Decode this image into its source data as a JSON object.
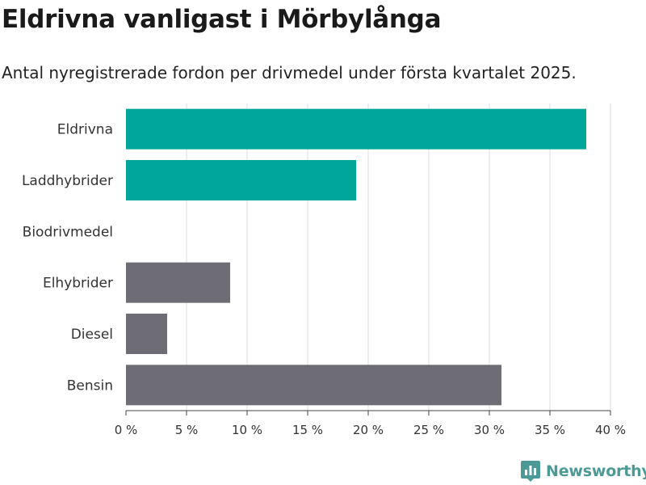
{
  "title": "Eldrivna vanligast i Mörbylånga",
  "subtitle": "Antal nyregistrerade fordon per drivmedel under första kvartalet 2025.",
  "brand": {
    "name": "Newsworthy",
    "logo_icon": "bar-chart-icon",
    "color": "#4c9a97"
  },
  "colors": {
    "highlight": "#00a699",
    "other": "#6e6c75",
    "grid": "#dddddd",
    "text": "#333333"
  },
  "chart_data": {
    "type": "bar",
    "orientation": "horizontal",
    "categories": [
      "Eldrivna",
      "Laddhybrider",
      "Biodrivmedel",
      "Elhybrider",
      "Diesel",
      "Bensin"
    ],
    "values": [
      38,
      19,
      0,
      8.6,
      3.4,
      31
    ],
    "highlighted": [
      true,
      true,
      false,
      false,
      false,
      false
    ],
    "xlim": [
      0,
      40
    ],
    "xticks": [
      0,
      5,
      10,
      15,
      20,
      25,
      30,
      35,
      40
    ],
    "tick_format": "{v} %",
    "grid": true
  }
}
